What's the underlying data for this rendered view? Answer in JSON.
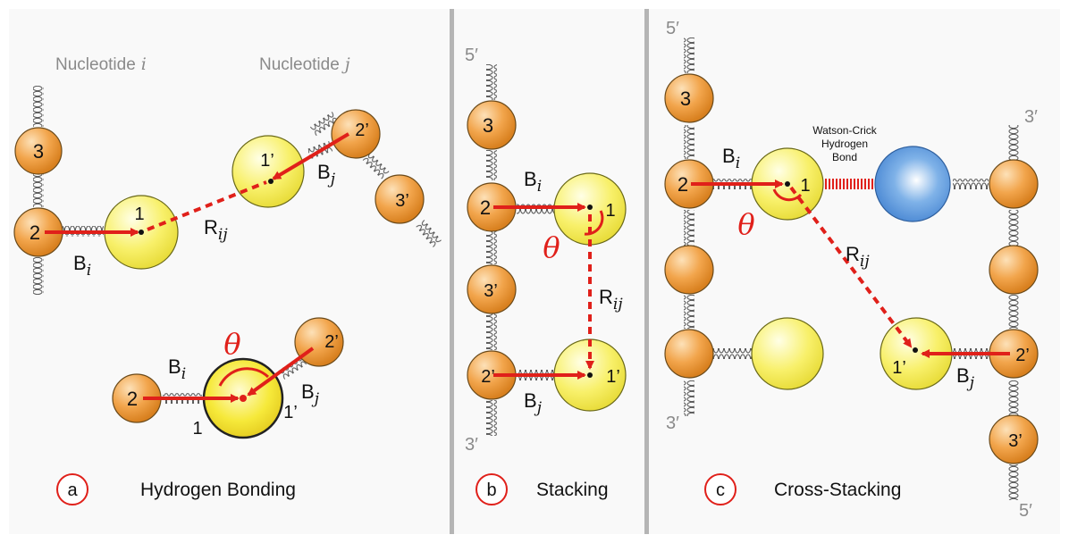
{
  "panel_a": {
    "nucleotide_i_word": "Nucleotide",
    "nucleotide_i_sym": "i",
    "nucleotide_j_word": "Nucleotide",
    "nucleotide_j_sym": "j",
    "top": {
      "b3": "3",
      "b2": "2",
      "b1": "1",
      "b1p": "1’",
      "b2p": "2’",
      "b3p": "3’",
      "Bi": "B",
      "Bi_sub": "i",
      "Bj": "B",
      "Bj_sub": "j",
      "Rij": "R",
      "Rij_sub": "ij"
    },
    "bottom": {
      "b2": "2",
      "b1": "1",
      "b1p": "1’",
      "b2p": "2’",
      "Bi": "B",
      "Bi_sub": "i",
      "Bj": "B",
      "Bj_sub": "j",
      "theta": "θ"
    },
    "letter": "a",
    "caption": "Hydrogen Bonding"
  },
  "panel_b": {
    "five_prime": "5′",
    "three_prime": "3′",
    "b3": "3",
    "b2": "2",
    "b1": "1",
    "b3p": "3’",
    "b2p": "2’",
    "b1p": "1’",
    "Bi": "B",
    "Bi_sub": "i",
    "Bj": "B",
    "Bj_sub": "j",
    "Rij": "R",
    "Rij_sub": "ij",
    "theta": "θ",
    "letter": "b",
    "caption": "Stacking"
  },
  "panel_c": {
    "five_prime_top": "5′",
    "three_prime_right": "3′",
    "three_prime_bottom": "3′",
    "five_prime_bottom": "5′",
    "b3": "3",
    "b2": "2",
    "b1": "1",
    "b2p": "2’",
    "b1p": "1’",
    "b3p": "3’",
    "wc_line1": "Watson-Crick",
    "wc_line2": "Hydrogen",
    "wc_line3": "Bond",
    "Bi": "B",
    "Bi_sub": "i",
    "Bj": "B",
    "Bj_sub": "j",
    "Rij": "R",
    "Rij_sub": "ij",
    "theta": "θ",
    "letter": "c",
    "caption": "Cross-Stacking"
  },
  "colors": {
    "orange": "#f0a24a",
    "yellow": "#f7ef5e",
    "blue": "#4a90d9",
    "red": "#e0201a",
    "divider": "#b5b5b5"
  }
}
